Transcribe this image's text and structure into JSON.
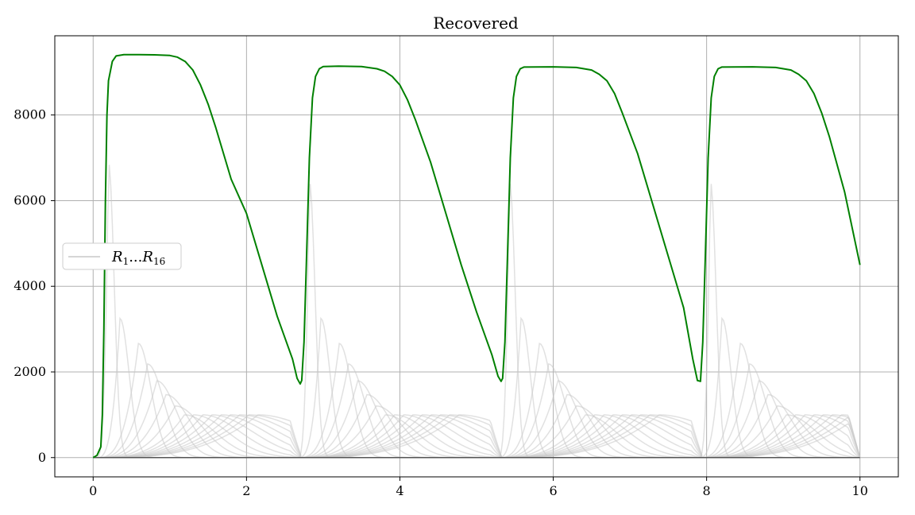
{
  "chart_data": {
    "type": "line",
    "title": "Recovered",
    "xlabel": "",
    "ylabel": "",
    "xlim": [
      -0.5,
      10.5
    ],
    "ylim": [
      -450,
      9850
    ],
    "xticks": [
      0,
      2,
      4,
      6,
      8,
      10
    ],
    "yticks": [
      0,
      2000,
      4000,
      6000,
      8000
    ],
    "grid": true,
    "legend": {
      "placement": "center-left",
      "entries": [
        {
          "label": "R_1 ... R_16",
          "symbol": "R",
          "sub_first": "1",
          "sub_last": "16",
          "color": "#c8c8c8"
        }
      ]
    },
    "series": [
      {
        "role": "total",
        "color": "#008000",
        "points": [
          [
            0.0,
            0
          ],
          [
            0.05,
            50
          ],
          [
            0.1,
            250
          ],
          [
            0.12,
            1000
          ],
          [
            0.14,
            3000
          ],
          [
            0.16,
            6000
          ],
          [
            0.18,
            8000
          ],
          [
            0.2,
            8800
          ],
          [
            0.25,
            9250
          ],
          [
            0.3,
            9380
          ],
          [
            0.4,
            9410
          ],
          [
            0.6,
            9410
          ],
          [
            0.8,
            9405
          ],
          [
            1.0,
            9390
          ],
          [
            1.1,
            9350
          ],
          [
            1.2,
            9250
          ],
          [
            1.3,
            9050
          ],
          [
            1.4,
            8700
          ],
          [
            1.5,
            8250
          ],
          [
            1.6,
            7700
          ],
          [
            1.8,
            6500
          ],
          [
            2.0,
            5700
          ],
          [
            2.2,
            4500
          ],
          [
            2.4,
            3300
          ],
          [
            2.6,
            2300
          ],
          [
            2.66,
            1850
          ],
          [
            2.7,
            1720
          ],
          [
            2.72,
            1800
          ],
          [
            2.75,
            2700
          ],
          [
            2.78,
            4500
          ],
          [
            2.82,
            7000
          ],
          [
            2.86,
            8400
          ],
          [
            2.9,
            8900
          ],
          [
            2.95,
            9080
          ],
          [
            3.0,
            9130
          ],
          [
            3.2,
            9140
          ],
          [
            3.5,
            9130
          ],
          [
            3.7,
            9080
          ],
          [
            3.8,
            9020
          ],
          [
            3.9,
            8900
          ],
          [
            4.0,
            8700
          ],
          [
            4.1,
            8350
          ],
          [
            4.2,
            7900
          ],
          [
            4.4,
            6900
          ],
          [
            4.6,
            5700
          ],
          [
            4.8,
            4500
          ],
          [
            5.0,
            3400
          ],
          [
            5.2,
            2400
          ],
          [
            5.28,
            1900
          ],
          [
            5.32,
            1780
          ],
          [
            5.34,
            1850
          ],
          [
            5.37,
            2700
          ],
          [
            5.4,
            4500
          ],
          [
            5.44,
            7000
          ],
          [
            5.48,
            8400
          ],
          [
            5.52,
            8900
          ],
          [
            5.57,
            9080
          ],
          [
            5.62,
            9120
          ],
          [
            6.0,
            9125
          ],
          [
            6.3,
            9110
          ],
          [
            6.5,
            9050
          ],
          [
            6.6,
            8950
          ],
          [
            6.7,
            8800
          ],
          [
            6.8,
            8500
          ],
          [
            6.9,
            8050
          ],
          [
            7.1,
            7100
          ],
          [
            7.3,
            5900
          ],
          [
            7.5,
            4700
          ],
          [
            7.7,
            3500
          ],
          [
            7.82,
            2300
          ],
          [
            7.88,
            1800
          ],
          [
            7.92,
            1780
          ],
          [
            7.95,
            2700
          ],
          [
            7.98,
            4500
          ],
          [
            8.02,
            7000
          ],
          [
            8.06,
            8400
          ],
          [
            8.1,
            8900
          ],
          [
            8.15,
            9080
          ],
          [
            8.2,
            9120
          ],
          [
            8.6,
            9125
          ],
          [
            8.9,
            9110
          ],
          [
            9.1,
            9050
          ],
          [
            9.2,
            8950
          ],
          [
            9.3,
            8800
          ],
          [
            9.4,
            8500
          ],
          [
            9.5,
            8050
          ],
          [
            9.6,
            7500
          ],
          [
            9.8,
            6200
          ],
          [
            10.0,
            4500
          ]
        ]
      }
    ],
    "gray_groups": {
      "color": "#c8c8c8",
      "count": 16,
      "epoch_starts": [
        0.1,
        2.72,
        5.33,
        7.95
      ],
      "first_peak_time": 0.2,
      "first_peak_values": [
        6900,
        6450,
        6450,
        6450
      ],
      "second_peak_time": 0.35,
      "second_peak_value": 3250,
      "tail_value": 950
    },
    "series_lines_hint": "16 light-gray per-group recovered curves R_1 ... R_16 repeating each epoch"
  }
}
